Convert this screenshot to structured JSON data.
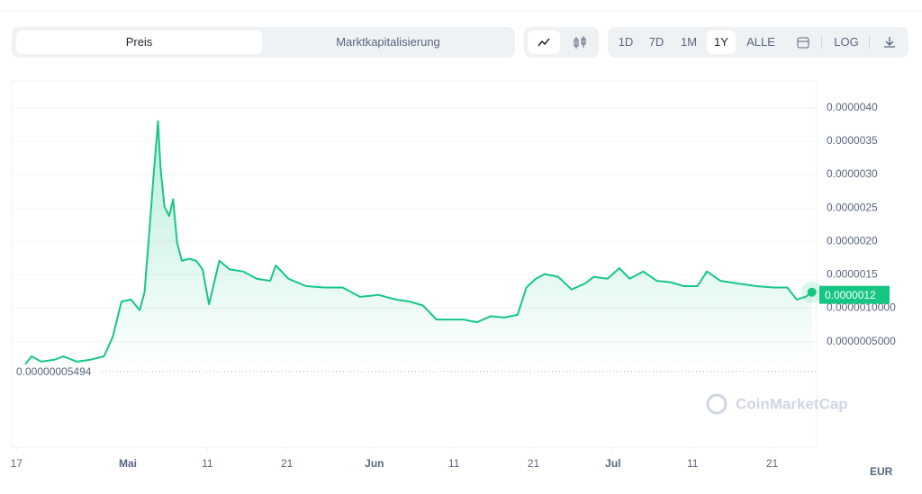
{
  "ui": {
    "tabs": [
      "Preis",
      "Marktkapitalisierung"
    ],
    "ranges": [
      "1D",
      "7D",
      "1M",
      "1Y",
      "ALLE"
    ],
    "active_range": "1Y",
    "log_button": "LOG",
    "currency": "EUR",
    "watermark": "CoinMarketCap"
  },
  "chart_data": {
    "type": "line",
    "color": "#16c784",
    "x": [
      1.1,
      1.9,
      3.1,
      4.8,
      5.9,
      7.6,
      9.3,
      11.0,
      12.1,
      13.2,
      14.4,
      15.5,
      16.1,
      16.6,
      17.2,
      17.8,
      18.1,
      18.6,
      19.2,
      19.7,
      20.2,
      20.8,
      21.7,
      22.6,
      23.4,
      24.2,
      24.9,
      25.5,
      26.8,
      28.5,
      30.2,
      31.9,
      32.6,
      34.2,
      36.4,
      38.7,
      41.0,
      43.2,
      45.5,
      47.7,
      49.4,
      51.1,
      52.8,
      54.5,
      56.2,
      57.9,
      59.6,
      61.3,
      63.0,
      64.1,
      65.3,
      66.4,
      68.1,
      69.8,
      71.5,
      72.6,
      74.3,
      75.8,
      77.1,
      78.8,
      80.5,
      82.2,
      83.9,
      85.6,
      86.8,
      88.5,
      90.7,
      93.0,
      95.2,
      96.9,
      98.1,
      99.2,
      100.0
    ],
    "values": [
      1.6e-07,
      2.8e-07,
      2e-07,
      2.3e-07,
      2.8e-07,
      2e-07,
      2.3e-07,
      2.8e-07,
      5.7e-07,
      1.1e-06,
      1.13e-06,
      9.7e-07,
      1.24e-06,
      1.98e-06,
      2.92e-06,
      3.8e-06,
      3.12e-06,
      2.52e-06,
      2.38e-06,
      2.63e-06,
      1.98e-06,
      1.71e-06,
      1.74e-06,
      1.71e-06,
      1.58e-06,
      1.06e-06,
      1.41e-06,
      1.71e-06,
      1.58e-06,
      1.55e-06,
      1.44e-06,
      1.41e-06,
      1.64e-06,
      1.44e-06,
      1.33e-06,
      1.31e-06,
      1.31e-06,
      1.17e-06,
      1.2e-06,
      1.13e-06,
      1.1e-06,
      1.04e-06,
      8.3e-07,
      8.3e-07,
      8.3e-07,
      7.9e-07,
      8.8e-07,
      8.6e-07,
      9e-07,
      1.31e-06,
      1.44e-06,
      1.51e-06,
      1.47e-06,
      1.28e-06,
      1.37e-06,
      1.47e-06,
      1.44e-06,
      1.6e-06,
      1.44e-06,
      1.55e-06,
      1.41e-06,
      1.39e-06,
      1.33e-06,
      1.33e-06,
      1.55e-06,
      1.41e-06,
      1.37e-06,
      1.33e-06,
      1.31e-06,
      1.31e-06,
      1.13e-06,
      1.17e-06,
      1.24e-06
    ],
    "xlim": [
      -0.6,
      100.6
    ],
    "xticks": [
      {
        "value": 0,
        "label": "17"
      },
      {
        "value": 14,
        "label": "Mai"
      },
      {
        "value": 24,
        "label": "11"
      },
      {
        "value": 34,
        "label": "21"
      },
      {
        "value": 45,
        "label": "Jun"
      },
      {
        "value": 55,
        "label": "11"
      },
      {
        "value": 65,
        "label": "21"
      },
      {
        "value": 75,
        "label": "Jul"
      },
      {
        "value": 85,
        "label": "11"
      },
      {
        "value": 95,
        "label": "21"
      }
    ],
    "ylim": [
      -1.08e-06,
      4.4e-06
    ],
    "yticks": [
      {
        "value": 5e-07,
        "label": "0.0000005000"
      },
      {
        "value": 1e-06,
        "label": "0.0000010000"
      },
      {
        "value": 1.5e-06,
        "label": "0.0000015"
      },
      {
        "value": 2e-06,
        "label": "0.0000020"
      },
      {
        "value": 2.5e-06,
        "label": "0.0000025"
      },
      {
        "value": 3e-06,
        "label": "0.0000030"
      },
      {
        "value": 3.5e-06,
        "label": "0.0000035"
      },
      {
        "value": 4e-06,
        "label": "0.0000040"
      }
    ],
    "grid": true,
    "baseline": {
      "value": 5.494e-08,
      "label": "0.00000005494"
    },
    "current_price": {
      "value": 1.2e-06,
      "label": "0.0000012"
    }
  }
}
